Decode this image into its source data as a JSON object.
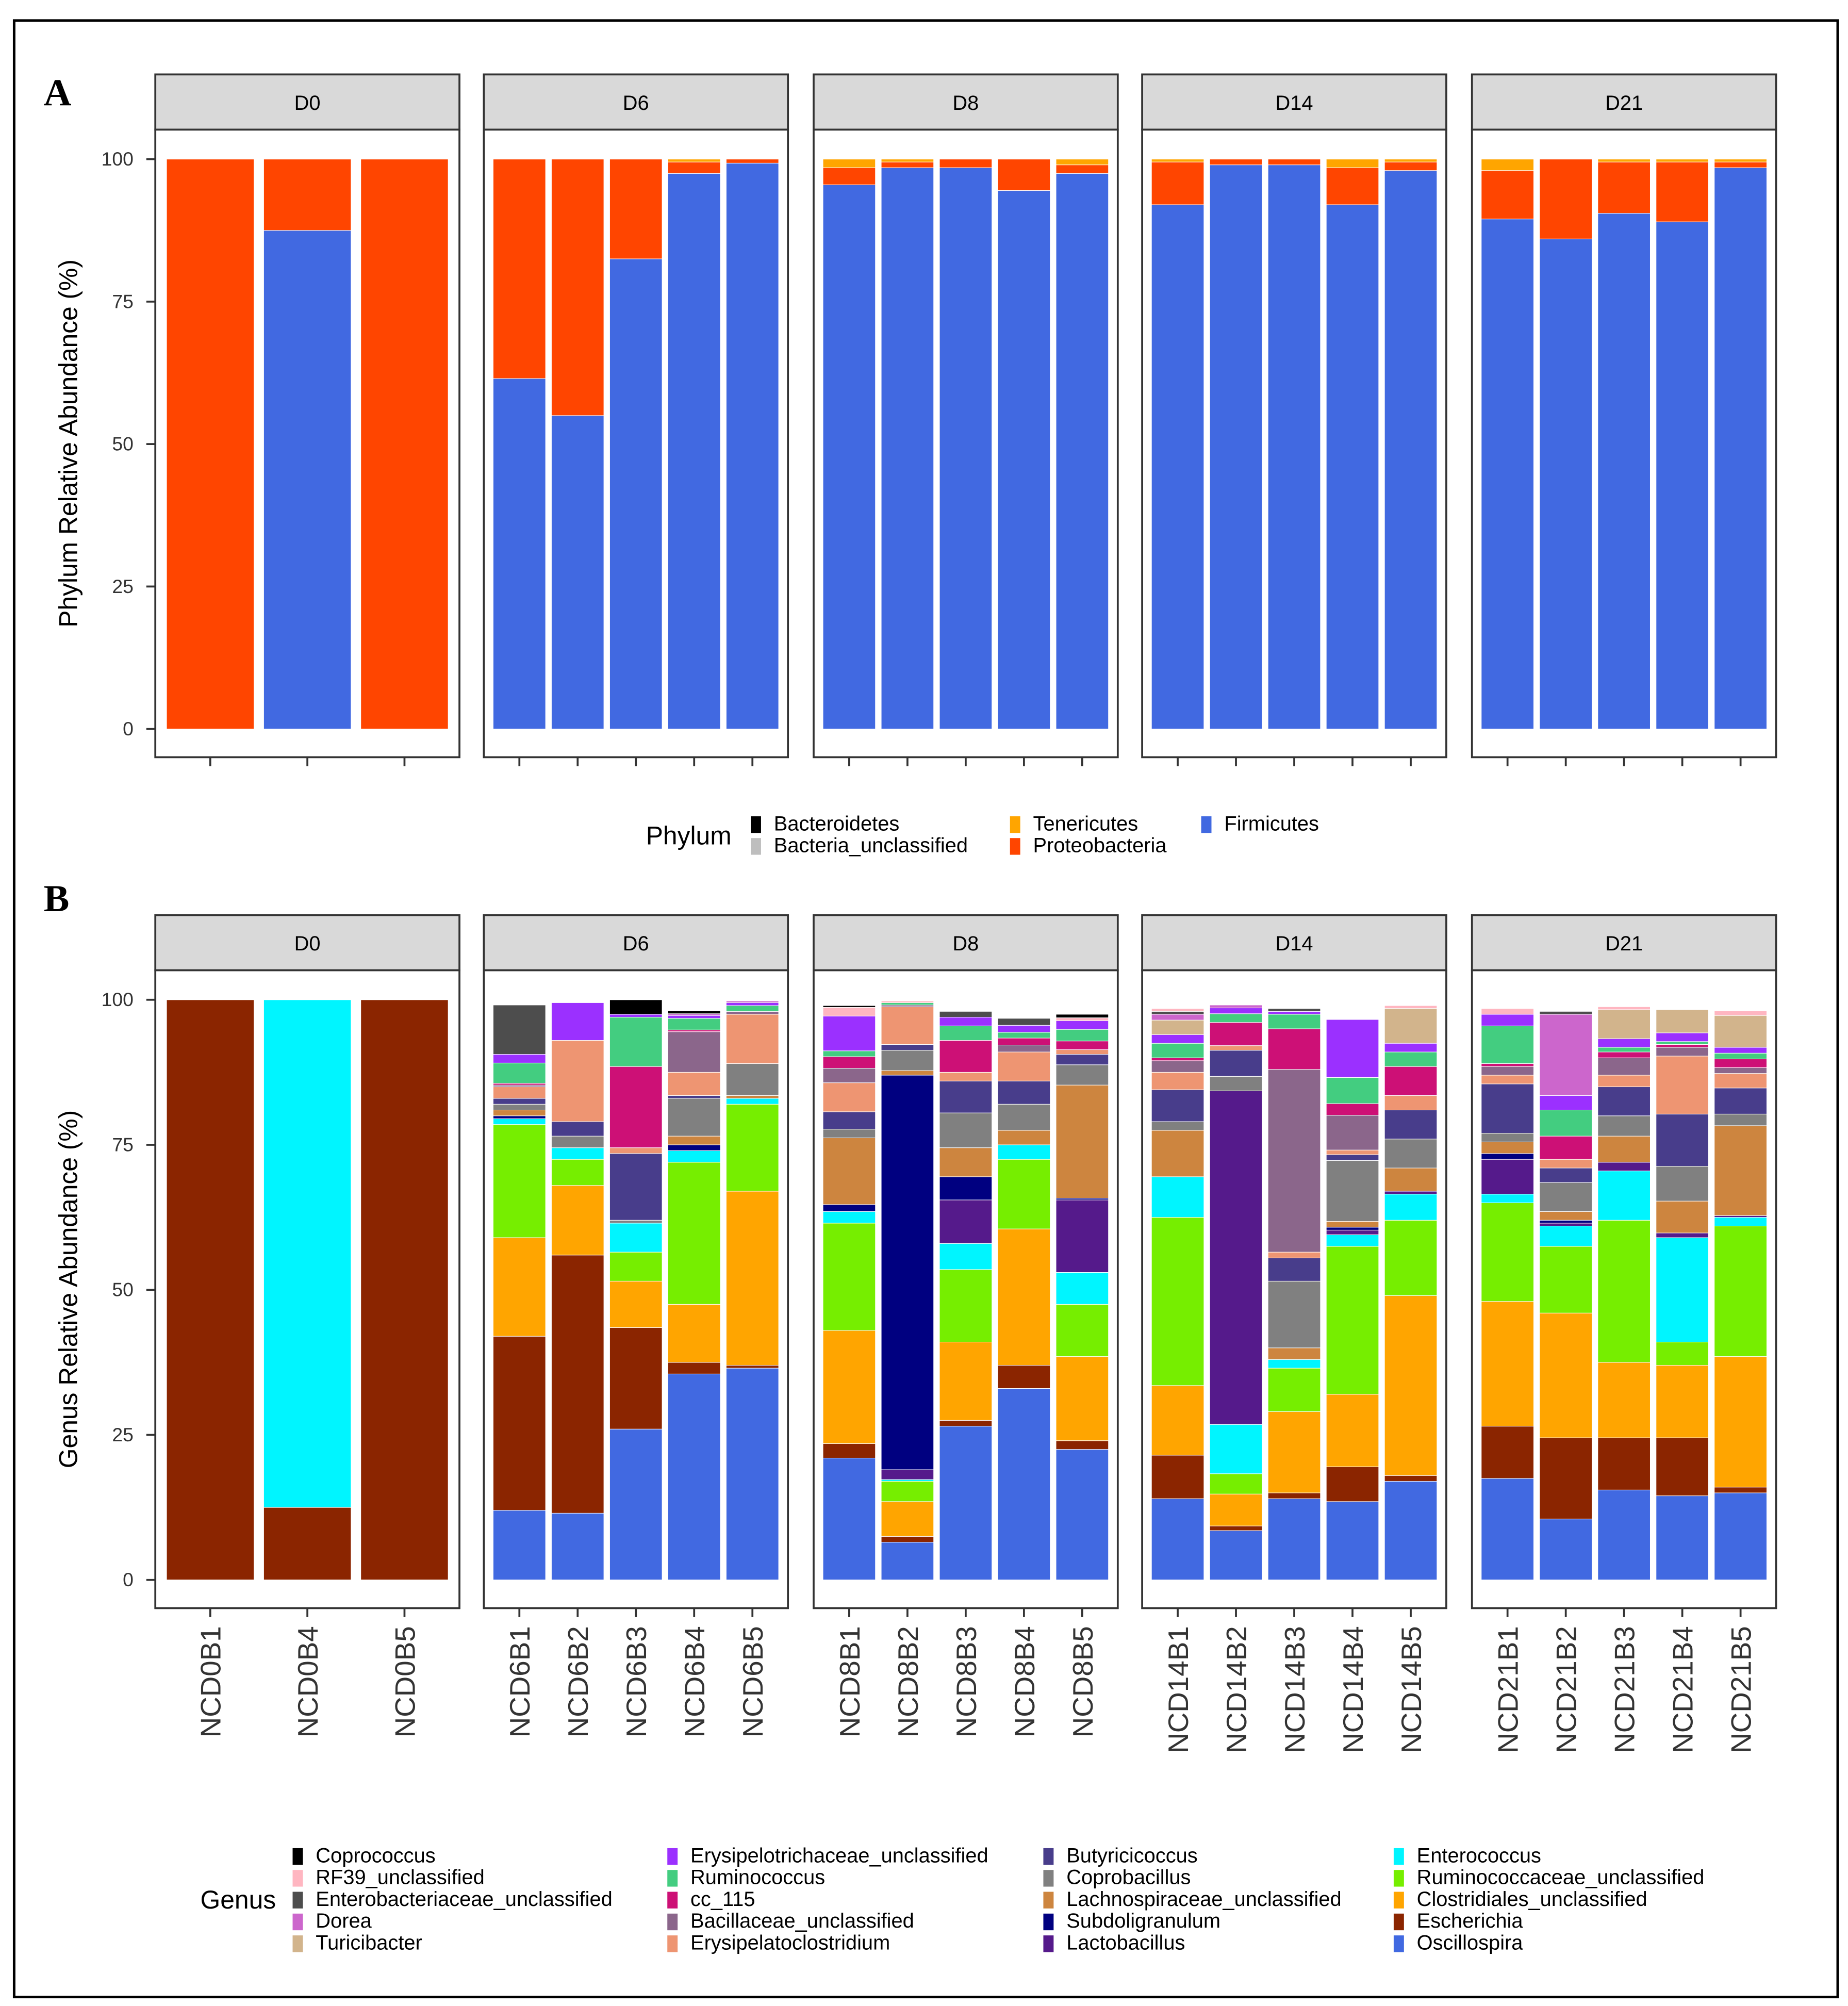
{
  "chart_data": [
    {
      "type": "bar",
      "stacked": true,
      "panel_label": "A",
      "ylabel": "Phylum Relative Abundance (%)",
      "ylim": [
        0,
        100
      ],
      "yticks": [
        0,
        25,
        50,
        75,
        100
      ],
      "facets": [
        {
          "label": "D0",
          "samples": [
            "NCD0B1",
            "NCD0B4",
            "NCD0B5"
          ]
        },
        {
          "label": "D6",
          "samples": [
            "NCD6B1",
            "NCD6B2",
            "NCD6B3",
            "NCD6B4",
            "NCD6B5"
          ]
        },
        {
          "label": "D8",
          "samples": [
            "NCD8B1",
            "NCD8B2",
            "NCD8B3",
            "NCD8B4",
            "NCD8B5"
          ]
        },
        {
          "label": "D14",
          "samples": [
            "NCD14B1",
            "NCD14B2",
            "NCD14B3",
            "NCD14B4",
            "NCD14B5"
          ]
        },
        {
          "label": "D21",
          "samples": [
            "NCD21B1",
            "NCD21B2",
            "NCD21B3",
            "NCD21B4",
            "NCD21B5"
          ]
        }
      ],
      "legend": {
        "title": "Phylum",
        "position": "bottom",
        "entries": [
          "Bacteroidetes",
          "Bacteria_unclassified",
          "Tenericutes",
          "Proteobacteria",
          "Firmicutes"
        ]
      },
      "stack_order_bottom_to_top": [
        "Firmicutes",
        "Proteobacteria",
        "Tenericutes",
        "Bacteria_unclassified",
        "Bacteroidetes"
      ],
      "colors": {
        "Bacteroidetes": "#000000",
        "Bacteria_unclassified": "#BEBEBE",
        "Tenericutes": "#FFA500",
        "Proteobacteria": "#FF4500",
        "Firmicutes": "#4169E1"
      },
      "values": {
        "NCD0B1": [
          0,
          100,
          0,
          0,
          0
        ],
        "NCD0B4": [
          87.5,
          12.5,
          0,
          0,
          0
        ],
        "NCD0B5": [
          0,
          100,
          0,
          0,
          0
        ],
        "NCD6B1": [
          61.5,
          38.5,
          0,
          0,
          0
        ],
        "NCD6B2": [
          55,
          45,
          0,
          0,
          0
        ],
        "NCD6B3": [
          82.5,
          17.5,
          0,
          0,
          0
        ],
        "NCD6B4": [
          97.5,
          2,
          0.5,
          0,
          0
        ],
        "NCD6B5": [
          99.3,
          0.7,
          0,
          0,
          0
        ],
        "NCD8B1": [
          95.5,
          3,
          1.5,
          0,
          0
        ],
        "NCD8B2": [
          98.5,
          1,
          0.5,
          0,
          0
        ],
        "NCD8B3": [
          98.5,
          1.5,
          0,
          0,
          0
        ],
        "NCD8B4": [
          94.5,
          5.5,
          0,
          0,
          0
        ],
        "NCD8B5": [
          97.5,
          1.5,
          1,
          0,
          0
        ],
        "NCD14B1": [
          92,
          7.5,
          0.5,
          0,
          0
        ],
        "NCD14B2": [
          99,
          1,
          0,
          0,
          0
        ],
        "NCD14B3": [
          99,
          1,
          0,
          0,
          0
        ],
        "NCD14B4": [
          92,
          6.5,
          1.5,
          0,
          0
        ],
        "NCD14B5": [
          98,
          1.5,
          0.5,
          0,
          0
        ],
        "NCD21B1": [
          89.5,
          8.5,
          2,
          0,
          0
        ],
        "NCD21B2": [
          86,
          14,
          0,
          0,
          0
        ],
        "NCD21B3": [
          90.5,
          9,
          0.5,
          0,
          0
        ],
        "NCD21B4": [
          89,
          10.5,
          0.5,
          0,
          0
        ],
        "NCD21B5": [
          98.5,
          1,
          0.5,
          0,
          0
        ]
      }
    },
    {
      "type": "bar",
      "stacked": true,
      "panel_label": "B",
      "ylabel": "Genus Relative Abundance (%)",
      "ylim": [
        0,
        100
      ],
      "yticks": [
        0,
        25,
        50,
        75,
        100
      ],
      "facets": [
        {
          "label": "D0",
          "samples": [
            "NCD0B1",
            "NCD0B4",
            "NCD0B5"
          ]
        },
        {
          "label": "D6",
          "samples": [
            "NCD6B1",
            "NCD6B2",
            "NCD6B3",
            "NCD6B4",
            "NCD6B5"
          ]
        },
        {
          "label": "D8",
          "samples": [
            "NCD8B1",
            "NCD8B2",
            "NCD8B3",
            "NCD8B4",
            "NCD8B5"
          ]
        },
        {
          "label": "D14",
          "samples": [
            "NCD14B1",
            "NCD14B2",
            "NCD14B3",
            "NCD14B4",
            "NCD14B5"
          ]
        },
        {
          "label": "D21",
          "samples": [
            "NCD21B1",
            "NCD21B2",
            "NCD21B3",
            "NCD21B4",
            "NCD21B5"
          ]
        }
      ],
      "legend": {
        "title": "Genus",
        "position": "bottom",
        "entries": [
          "Coprococcus",
          "RF39_unclassified",
          "Enterobacteriaceae_unclassified",
          "Dorea",
          "Turicibacter",
          "Erysipelotrichaceae_unclassified",
          "Ruminococcus",
          "cc_115",
          "Bacillaceae_unclassified",
          "Erysipelatoclostridium",
          "Butyricicoccus",
          "Coprobacillus",
          "Lachnospiraceae_unclassified",
          "Subdoligranulum",
          "Lactobacillus",
          "Enterococcus",
          "Ruminococcaceae_unclassified",
          "Clostridiales_unclassified",
          "Escherichia",
          "Oscillospira"
        ]
      },
      "stack_order_bottom_to_top": [
        "Oscillospira",
        "Escherichia",
        "Clostridiales_unclassified",
        "Ruminococcaceae_unclassified",
        "Enterococcus",
        "Lactobacillus",
        "Subdoligranulum",
        "Lachnospiraceae_unclassified",
        "Coprobacillus",
        "Butyricicoccus",
        "Erysipelatoclostridium",
        "Bacillaceae_unclassified",
        "cc_115",
        "Ruminococcus",
        "Erysipelotrichaceae_unclassified",
        "Turicibacter",
        "Dorea",
        "Enterobacteriaceae_unclassified",
        "RF39_unclassified",
        "Coprococcus"
      ],
      "colors": {
        "Coprococcus": "#000000",
        "RF39_unclassified": "#FFB6C1",
        "Enterobacteriaceae_unclassified": "#4D4D4D",
        "Dorea": "#CC66CC",
        "Turicibacter": "#D2B48C",
        "Erysipelotrichaceae_unclassified": "#9B30FF",
        "Ruminococcus": "#43CD80",
        "cc_115": "#CD1076",
        "Bacillaceae_unclassified": "#8B668B",
        "Erysipelatoclostridium": "#EE9572",
        "Butyricicoccus": "#483D8B",
        "Coprobacillus": "#808080",
        "Lachnospiraceae_unclassified": "#CD853F",
        "Subdoligranulum": "#000080",
        "Lactobacillus": "#551A8B",
        "Enterococcus": "#00F5FF",
        "Ruminococcaceae_unclassified": "#76EE00",
        "Clostridiales_unclassified": "#FFA500",
        "Escherichia": "#8B2500",
        "Oscillospira": "#4169E1"
      },
      "values": {
        "NCD0B1": [
          0,
          100,
          0,
          0,
          0,
          0,
          0,
          0,
          0,
          0,
          0,
          0,
          0,
          0,
          0,
          0,
          0,
          0,
          0,
          0
        ],
        "NCD0B4": [
          0,
          12.5,
          0,
          0,
          87.5,
          0,
          0,
          0,
          0,
          0,
          0,
          0,
          0,
          0,
          0,
          0,
          0,
          0,
          0,
          0
        ],
        "NCD0B5": [
          0,
          100,
          0,
          0,
          0,
          0,
          0,
          0,
          0,
          0,
          0,
          0,
          0,
          0,
          0,
          0,
          0,
          0,
          0,
          0
        ],
        "NCD6B1": [
          12,
          30,
          17,
          19.5,
          1,
          0,
          0.5,
          1,
          1,
          1,
          2,
          0.3,
          0.3,
          3.5,
          1.5,
          0,
          0,
          8.5,
          0,
          0
        ],
        "NCD6B2": [
          11.5,
          44.5,
          12,
          4.5,
          2,
          0,
          0,
          0,
          2,
          2.5,
          14,
          0,
          0,
          0,
          6.5,
          0,
          0,
          0,
          0,
          0
        ],
        "NCD6B3": [
          26,
          17.5,
          8,
          5,
          5,
          0,
          0,
          0,
          0.5,
          11.5,
          1,
          0,
          14,
          8.5,
          0.5,
          0,
          0,
          0,
          0,
          2.5
        ],
        "NCD6B4": [
          35.5,
          2,
          10,
          24.5,
          2,
          0,
          1,
          1.5,
          6.5,
          0.5,
          4,
          7,
          0.3,
          2,
          0.5,
          0,
          0.3,
          0,
          0,
          0.5
        ],
        "NCD6B5": [
          36.5,
          0.5,
          30,
          15,
          1,
          0,
          0,
          0.5,
          5.5,
          0,
          8.5,
          0.5,
          0,
          1,
          0.5,
          0,
          0.3,
          0,
          0,
          0
        ],
        "NCD8B1": [
          21,
          2.5,
          19.5,
          18.5,
          2,
          0,
          1.2,
          11.5,
          1.5,
          3,
          5,
          2.5,
          2,
          1,
          6,
          0,
          0,
          0,
          1.5,
          0.3
        ],
        "NCD8B2": [
          6.5,
          1,
          6,
          3.5,
          0.3,
          1.7,
          68,
          0.8,
          3.5,
          1,
          6.5,
          0.3,
          0,
          0.4,
          0,
          0,
          0,
          0,
          0.3,
          0
        ],
        "NCD8B3": [
          26.5,
          1,
          13.5,
          12.5,
          4.5,
          7.5,
          4,
          5,
          6,
          5.5,
          1.5,
          0,
          5.5,
          2.5,
          1.5,
          0,
          0,
          1,
          0,
          0
        ],
        "NCD8B4": [
          33,
          4,
          23.5,
          12,
          2.5,
          0,
          0,
          2.5,
          4.5,
          4,
          5,
          1.2,
          1.2,
          1,
          1.2,
          0,
          0,
          1.2,
          0,
          0
        ],
        "NCD8B5": [
          22.5,
          1.5,
          14.5,
          9,
          5.5,
          12.5,
          0.3,
          19.5,
          3.5,
          1.8,
          0.8,
          0,
          1.5,
          2,
          1.5,
          0,
          0,
          0,
          0.5,
          0.6
        ],
        "NCD14B1": [
          14,
          7.5,
          12,
          29,
          7,
          0,
          0,
          8,
          1.5,
          5.5,
          3,
          2,
          0.5,
          2.5,
          1.5,
          2.5,
          1,
          0.5,
          0.5,
          0
        ],
        "NCD14B2": [
          8.5,
          0.8,
          5.5,
          3.5,
          8.5,
          57.5,
          0,
          0,
          2.5,
          4.5,
          0.8,
          0,
          4,
          1.5,
          1,
          0,
          0.5,
          0,
          0,
          0
        ],
        "NCD14B3": [
          14,
          1,
          14,
          7.5,
          1.5,
          0,
          0,
          2,
          11.5,
          4,
          1,
          31.5,
          7,
          2.5,
          0.5,
          0,
          0,
          0.5,
          0,
          0
        ],
        "NCD14B4": [
          13.5,
          6,
          12.5,
          25.5,
          2,
          0.8,
          0.5,
          1,
          10.5,
          1,
          0.8,
          6,
          2,
          4.5,
          10,
          0,
          0,
          0,
          0,
          0
        ],
        "NCD14B5": [
          17,
          1,
          31,
          13,
          4.5,
          0.5,
          0,
          4,
          5,
          5,
          2.5,
          0,
          5,
          2.5,
          1.5,
          6,
          0,
          0,
          0.5,
          0
        ],
        "NCD21B1": [
          17.5,
          9,
          21.5,
          17,
          1.5,
          6,
          1,
          2,
          1.5,
          8.5,
          1.5,
          1.5,
          0.5,
          6.5,
          2,
          0,
          0,
          0,
          1,
          0
        ],
        "NCD21B2": [
          10.5,
          14,
          21.5,
          11.5,
          3.5,
          0.5,
          0.5,
          1.5,
          5,
          2.5,
          1.5,
          0,
          4,
          4.5,
          2.5,
          0,
          14,
          0.5,
          0,
          0
        ],
        "NCD21B3": [
          15.5,
          9,
          13,
          24.5,
          8.5,
          1.5,
          0,
          4.5,
          3.5,
          5,
          2,
          3,
          1,
          0.8,
          1.5,
          5,
          0,
          0,
          0.5,
          0
        ],
        "NCD21B4": [
          14.5,
          10,
          12.5,
          4,
          18,
          0.8,
          0,
          5.5,
          6,
          9,
          10,
          1.5,
          0.5,
          0.5,
          1.5,
          4,
          0,
          0,
          0,
          0
        ],
        "NCD21B5": [
          15,
          1,
          22.5,
          22.5,
          1.5,
          0.3,
          0,
          15.5,
          2,
          4.5,
          2.5,
          1,
          1.5,
          1,
          1,
          5.5,
          0,
          0,
          0.8,
          0
        ]
      }
    }
  ]
}
